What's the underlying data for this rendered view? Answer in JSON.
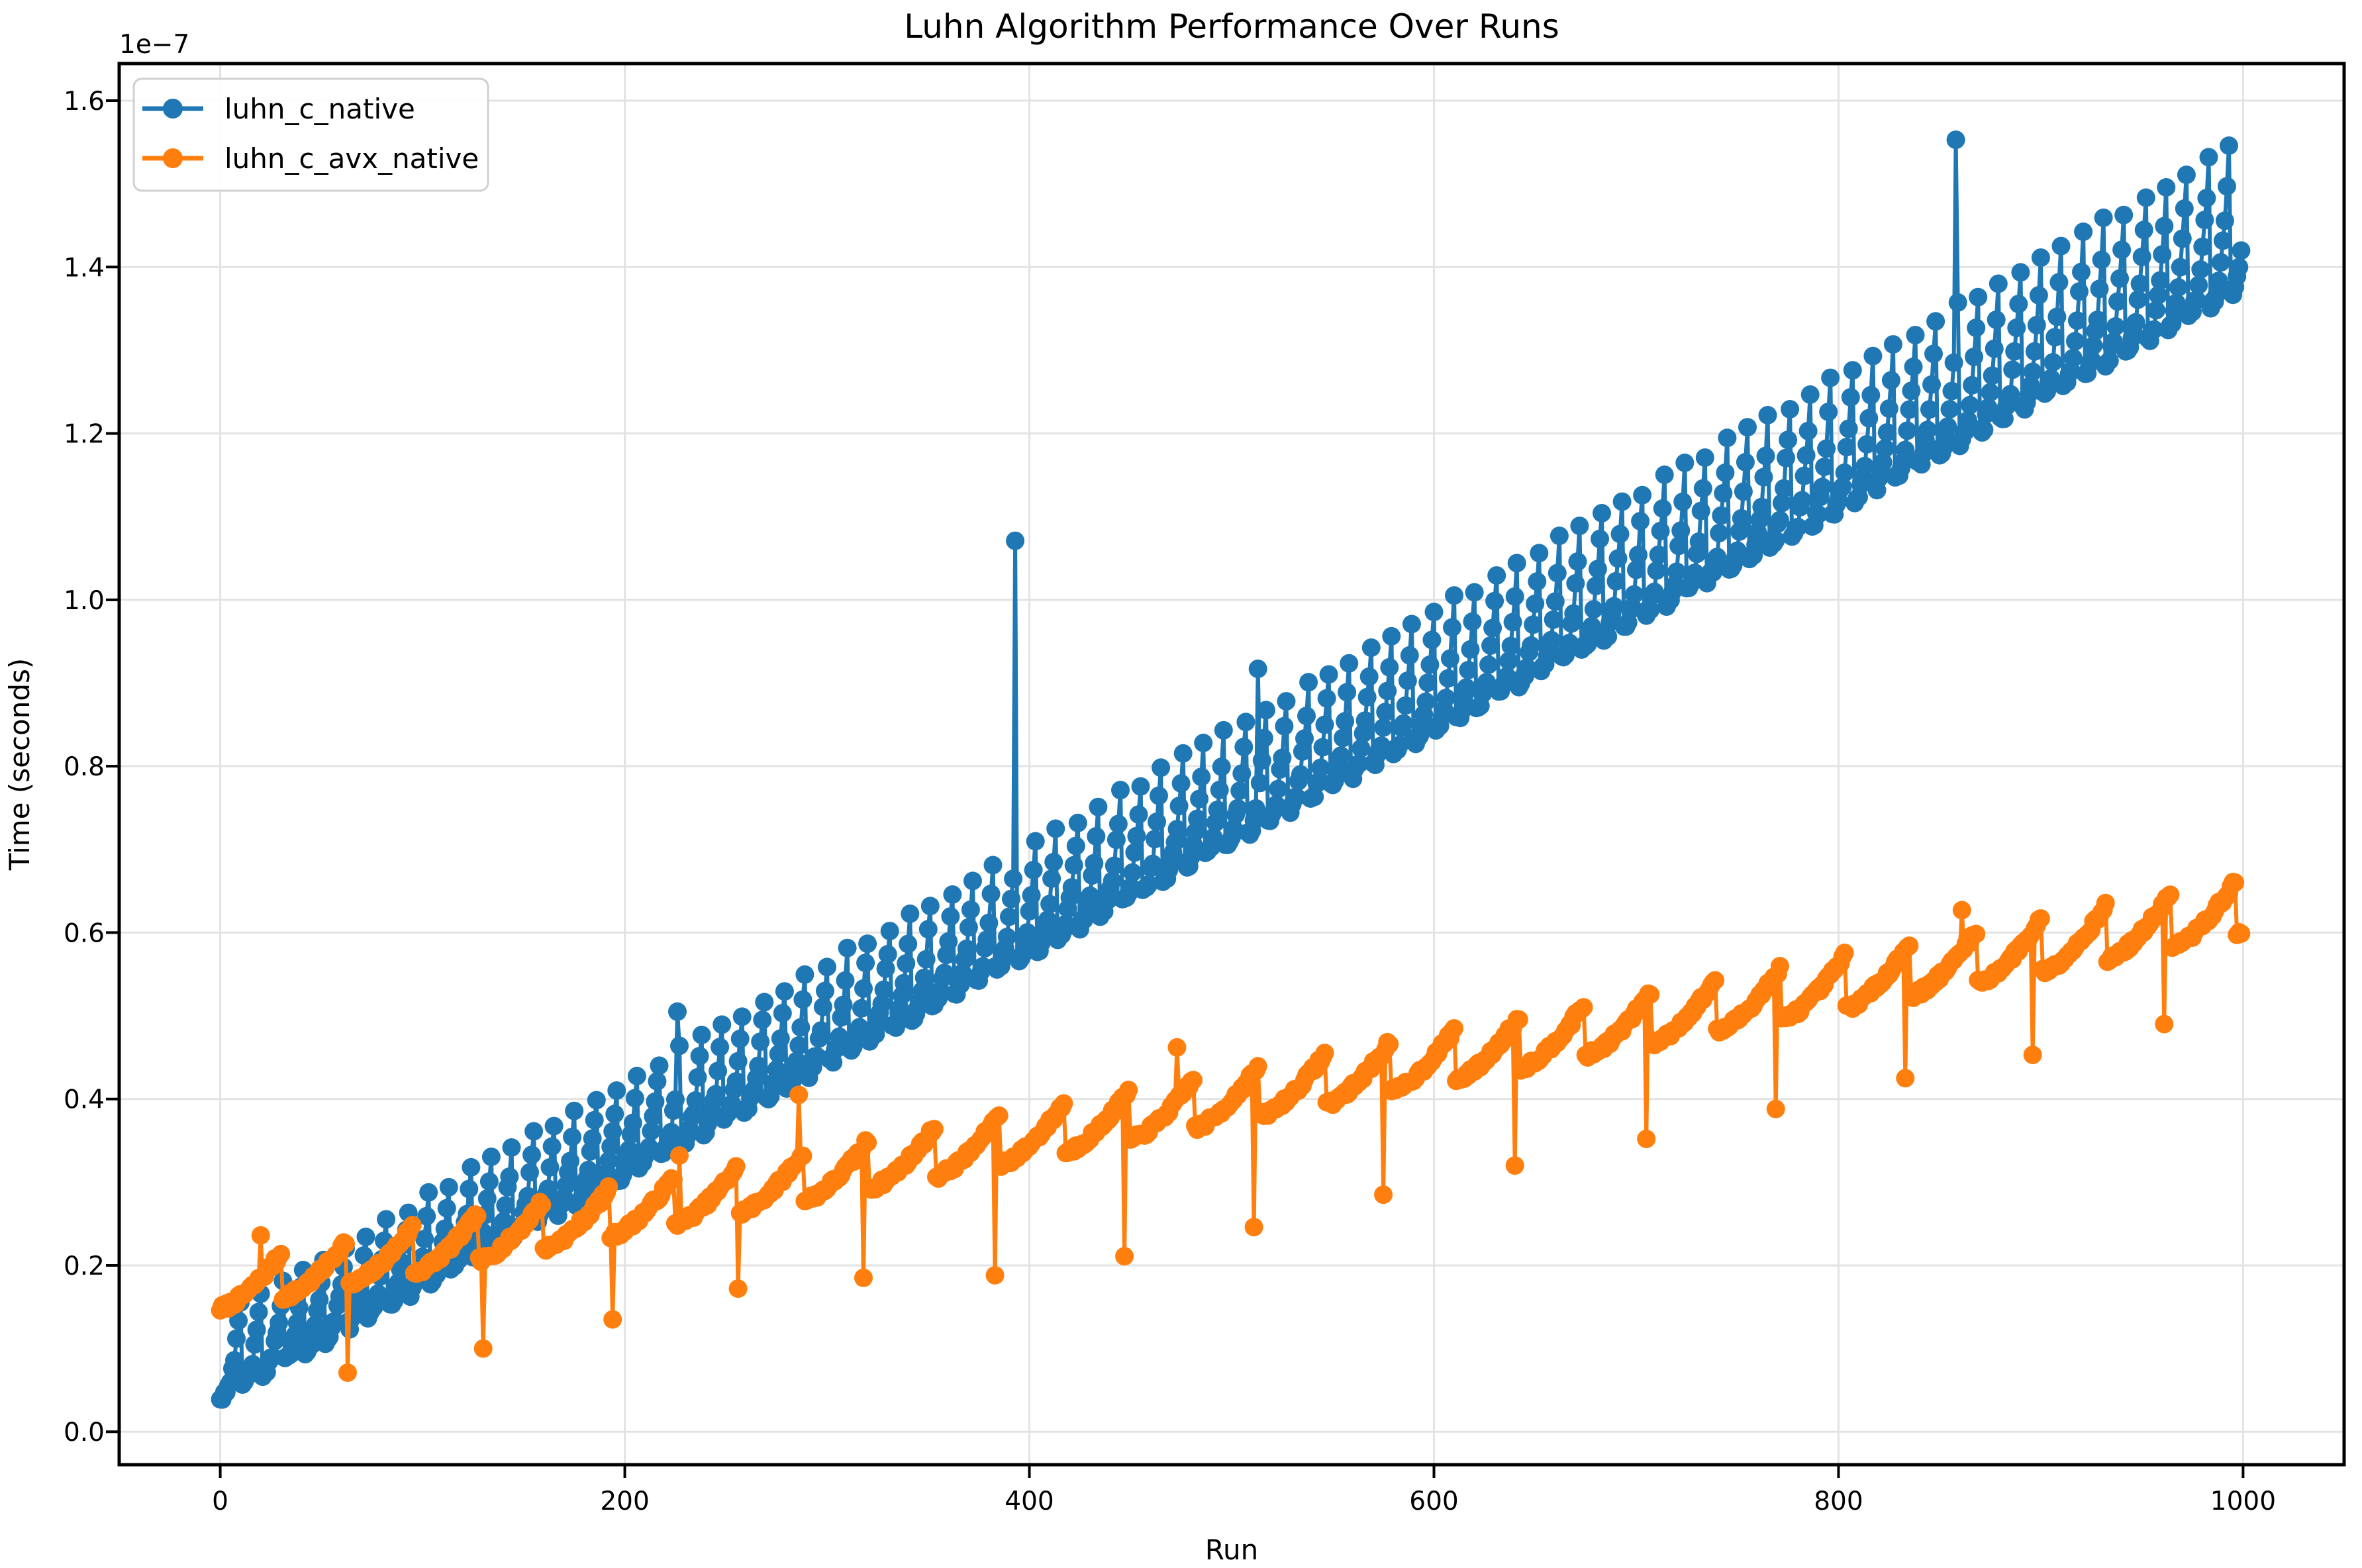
{
  "figure": {
    "background": "#ffffff",
    "spine_color": "#000000",
    "grid_color": "#e3e3e3"
  },
  "chart_data": {
    "type": "line",
    "title": "Luhn Algorithm Performance Over Runs",
    "xlabel": "Run",
    "ylabel": "Time (seconds)",
    "y_offset_text": "1e−7",
    "x_ticks": [
      0,
      200,
      400,
      600,
      800,
      1000
    ],
    "y_ticks": [
      0.0,
      0.2,
      0.4,
      0.6,
      0.8,
      1.0,
      1.2,
      1.4,
      1.6
    ],
    "xlim": [
      -49.95,
      1049.95
    ],
    "ylim": [
      -0.0396,
      1.6446
    ],
    "grid": true,
    "legend_position": "upper-left",
    "n_runs": 1000,
    "y_units": "1e-7 seconds",
    "series": [
      {
        "name": "luhn_c_native",
        "color": "#1f77b4",
        "marker": "circle",
        "model": {
          "base0": 0.042,
          "slope": 0.001335,
          "period": 10.35,
          "phase": 0,
          "amp0": 0.095,
          "amp_slope": 8e-05,
          "shape": 2.5,
          "noise": 0.006,
          "seed": 42
        },
        "spikes": {
          "226": 0.505,
          "393": 1.071,
          "513": 0.917,
          "858": 1.553
        }
      },
      {
        "name": "luhn_c_avx_native",
        "color": "#ff7f0e",
        "marker": "circle",
        "model": {
          "base0": 0.148,
          "slope": 0.00045,
          "period": 32.2,
          "phase": -1.2,
          "amp0": 0.055,
          "amp_slope": 1e-05,
          "shape": 1.6,
          "noise": 0.004,
          "seed": 7
        },
        "spikes": {
          "20": 0.236,
          "63": 0.071,
          "130": 0.1,
          "194": 0.135,
          "227": 0.332,
          "256": 0.172,
          "286": 0.405,
          "318": 0.185,
          "383": 0.188,
          "447": 0.211,
          "473": 0.462,
          "511": 0.246,
          "575": 0.285,
          "640": 0.32,
          "705": 0.352,
          "769": 0.388,
          "833": 0.425,
          "861": 0.627,
          "896": 0.453,
          "961": 0.49
        }
      }
    ]
  }
}
